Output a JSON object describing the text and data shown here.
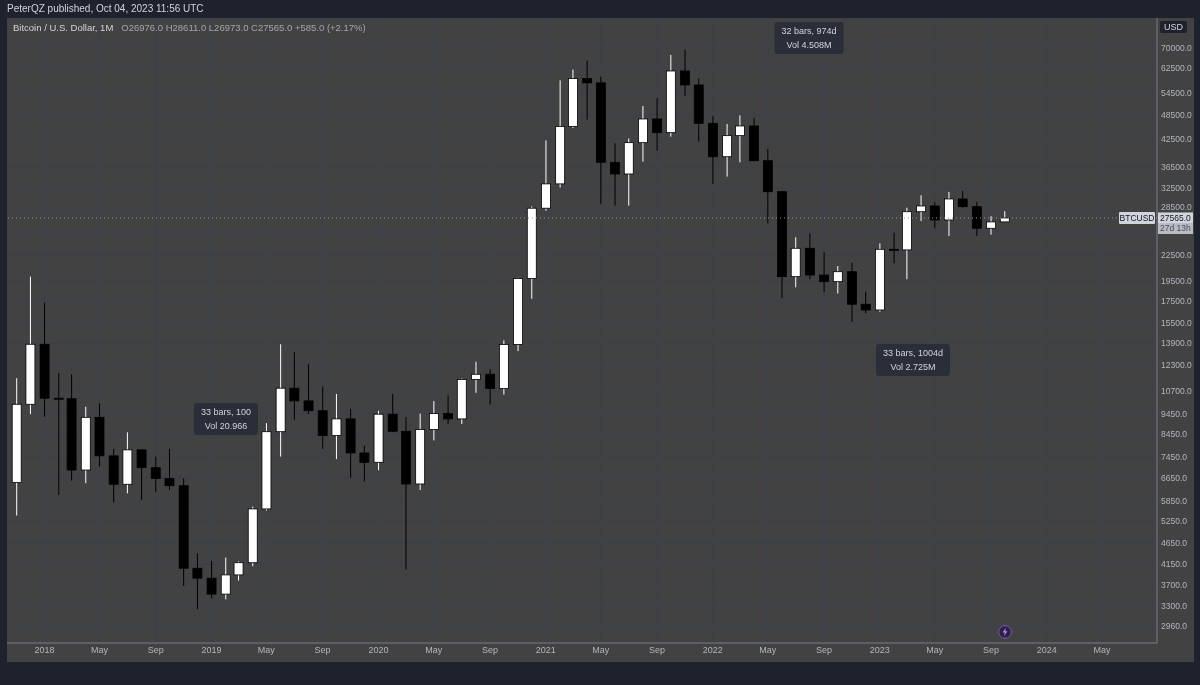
{
  "chart_data": {
    "type": "candlestick",
    "title": "Bitcoin / U.S. Dollar, 1M",
    "subtitle": "O26976.0 H28611.0 L26973.0 C27565.0 +585.0 (+2.17%)",
    "ylabel": "USD",
    "x": [
      "2017-11",
      "2017-12",
      "2018-01",
      "2018-02",
      "2018-03",
      "2018-04",
      "2018-05",
      "2018-06",
      "2018-07",
      "2018-08",
      "2018-09",
      "2018-10",
      "2018-11",
      "2018-12",
      "2019-01",
      "2019-02",
      "2019-03",
      "2019-04",
      "2019-05",
      "2019-06",
      "2019-07",
      "2019-08",
      "2019-09",
      "2019-10",
      "2019-11",
      "2019-12",
      "2020-01",
      "2020-02",
      "2020-03",
      "2020-04",
      "2020-05",
      "2020-06",
      "2020-07",
      "2020-08",
      "2020-09",
      "2020-10",
      "2020-11",
      "2020-12",
      "2021-01",
      "2021-02",
      "2021-03",
      "2021-04",
      "2021-05",
      "2021-06",
      "2021-07",
      "2021-08",
      "2021-09",
      "2021-10",
      "2021-11",
      "2021-12",
      "2022-01",
      "2022-02",
      "2022-03",
      "2022-04",
      "2022-05",
      "2022-06",
      "2022-07",
      "2022-08",
      "2022-09",
      "2022-10",
      "2022-11",
      "2022-12",
      "2023-01",
      "2023-02",
      "2023-03",
      "2023-04",
      "2023-05",
      "2023-06",
      "2023-07",
      "2023-08",
      "2023-09",
      "2023-10"
    ],
    "ohlc": [
      [
        6480,
        11470,
        5410,
        9945
      ],
      [
        9945,
        20000,
        9420,
        13810
      ],
      [
        13810,
        17340,
        9290,
        10280
      ],
      [
        10280,
        11790,
        6060,
        10250
      ],
      [
        10250,
        11720,
        6550,
        6940
      ],
      [
        6940,
        9810,
        6460,
        9260
      ],
      [
        9260,
        10000,
        7070,
        7500
      ],
      [
        7500,
        7790,
        5810,
        6420
      ],
      [
        6420,
        8530,
        6110,
        7750
      ],
      [
        7750,
        7760,
        5890,
        7030
      ],
      [
        7030,
        7470,
        6150,
        6630
      ],
      [
        6630,
        7790,
        6220,
        6370
      ],
      [
        6370,
        6630,
        3680,
        4055
      ],
      [
        4055,
        4400,
        3240,
        3840
      ],
      [
        3840,
        4220,
        3440,
        3520
      ],
      [
        3520,
        4300,
        3420,
        3910
      ],
      [
        3910,
        4210,
        3790,
        4180
      ],
      [
        4180,
        5680,
        4100,
        5610
      ],
      [
        5610,
        8970,
        5560,
        8560
      ],
      [
        8560,
        13810,
        7470,
        10860
      ],
      [
        10860,
        13220,
        9130,
        10130
      ],
      [
        10130,
        12380,
        9430,
        9600
      ],
      [
        9600,
        10950,
        7790,
        8380
      ],
      [
        8380,
        10520,
        7370,
        9180
      ],
      [
        9180,
        9700,
        6660,
        7620
      ],
      [
        7620,
        7930,
        6520,
        7240
      ],
      [
        7240,
        9600,
        6930,
        9420
      ],
      [
        9420,
        10530,
        8540,
        8580
      ],
      [
        8580,
        9270,
        4030,
        6430
      ],
      [
        6430,
        9450,
        6220,
        8660
      ],
      [
        8660,
        10120,
        8160,
        9450
      ],
      [
        9450,
        10440,
        8920,
        9180
      ],
      [
        9180,
        11450,
        8930,
        11390
      ],
      [
        11390,
        12550,
        10590,
        11720
      ],
      [
        11720,
        12040,
        9930,
        10840
      ],
      [
        10840,
        14110,
        10490,
        13790
      ],
      [
        13790,
        19870,
        13300,
        19790
      ],
      [
        19790,
        29350,
        17710,
        29070
      ],
      [
        29070,
        42130,
        28680,
        33210
      ],
      [
        33210,
        58520,
        32560,
        45490
      ],
      [
        45490,
        62070,
        45100,
        59080
      ],
      [
        59080,
        65170,
        47210,
        57710
      ],
      [
        57710,
        59700,
        29750,
        37370
      ],
      [
        37370,
        41470,
        29480,
        35060
      ],
      [
        35060,
        42570,
        29480,
        41610
      ],
      [
        41610,
        50860,
        37500,
        47370
      ],
      [
        47370,
        53050,
        39820,
        43950
      ],
      [
        43950,
        67220,
        43000,
        61590
      ],
      [
        61590,
        69090,
        53720,
        57050
      ],
      [
        57050,
        59100,
        41830,
        46260
      ],
      [
        46260,
        48150,
        33190,
        38530
      ],
      [
        38530,
        46090,
        34550,
        43240
      ],
      [
        43240,
        48330,
        37370,
        45590
      ],
      [
        45590,
        47700,
        37600,
        37700
      ],
      [
        37700,
        40200,
        26770,
        31820
      ],
      [
        31820,
        31950,
        17760,
        19990
      ],
      [
        19990,
        24800,
        18860,
        23350
      ],
      [
        23350,
        25340,
        19710,
        20170
      ],
      [
        20170,
        22850,
        18350,
        19450
      ],
      [
        19450,
        21190,
        18230,
        20540
      ],
      [
        20540,
        21580,
        15630,
        17190
      ],
      [
        17190,
        18410,
        16360,
        16660
      ],
      [
        16660,
        23990,
        16500,
        23220
      ],
      [
        23220,
        25420,
        21510,
        23140
      ],
      [
        23140,
        29150,
        19710,
        28520
      ],
      [
        28520,
        31210,
        27110,
        29430
      ],
      [
        29430,
        30020,
        26050,
        27260
      ],
      [
        27260,
        31770,
        24970,
        30580
      ],
      [
        30580,
        32000,
        29140,
        29320
      ],
      [
        29320,
        30100,
        24970,
        26050
      ],
      [
        26050,
        27830,
        25150,
        26970
      ],
      [
        26976,
        28611,
        26973,
        27565
      ]
    ],
    "colors": [
      "#ffffff",
      "#ffffff",
      "#000000",
      "#000000",
      "#000000",
      "#ffffff",
      "#000000",
      "#000000",
      "#ffffff",
      "#000000",
      "#000000",
      "#000000",
      "#000000",
      "#000000",
      "#000000",
      "#ffffff",
      "#ffffff",
      "#ffffff",
      "#ffffff",
      "#ffffff",
      "#000000",
      "#000000",
      "#000000",
      "#ffffff",
      "#000000",
      "#000000",
      "#ffffff",
      "#000000",
      "#000000",
      "#ffffff",
      "#ffffff",
      "#000000",
      "#ffffff",
      "#ffffff",
      "#000000",
      "#ffffff",
      "#ffffff",
      "#ffffff",
      "#ffffff",
      "#ffffff",
      "#ffffff",
      "#000000",
      "#000000",
      "#000000",
      "#ffffff",
      "#ffffff",
      "#000000",
      "#ffffff",
      "#000000",
      "#000000",
      "#000000",
      "#ffffff",
      "#ffffff",
      "#000000",
      "#000000",
      "#000000",
      "#ffffff",
      "#000000",
      "#000000",
      "#ffffff",
      "#000000",
      "#000000",
      "#ffffff",
      "#000000",
      "#ffffff",
      "#ffffff",
      "#000000",
      "#ffffff",
      "#000000",
      "#000000",
      "#ffffff",
      "#ffffff"
    ],
    "xlim": [
      "2017-10-11",
      "2024-08-29"
    ],
    "xticks": [
      {
        "value": "2018-01",
        "label": "2018"
      },
      {
        "value": "2018-05",
        "label": "May"
      },
      {
        "value": "2018-09",
        "label": "Sep"
      },
      {
        "value": "2019-01",
        "label": "2019"
      },
      {
        "value": "2019-05",
        "label": "May"
      },
      {
        "value": "2019-09",
        "label": "Sep"
      },
      {
        "value": "2020-01",
        "label": "2020"
      },
      {
        "value": "2020-05",
        "label": "May"
      },
      {
        "value": "2020-09",
        "label": "Sep"
      },
      {
        "value": "2021-01",
        "label": "2021"
      },
      {
        "value": "2021-05",
        "label": "May"
      },
      {
        "value": "2021-09",
        "label": "Sep"
      },
      {
        "value": "2022-01",
        "label": "2022"
      },
      {
        "value": "2022-05",
        "label": "May"
      },
      {
        "value": "2022-09",
        "label": "Sep"
      },
      {
        "value": "2023-01",
        "label": "2023"
      },
      {
        "value": "2023-05",
        "label": "May"
      },
      {
        "value": "2023-09",
        "label": "Sep"
      },
      {
        "value": "2024-01",
        "label": "2024"
      },
      {
        "value": "2024-05",
        "label": "May"
      }
    ],
    "ylim": [
      2694,
      82300
    ],
    "yticks": [
      {
        "value": 2960,
        "label": "2960.0"
      },
      {
        "value": 3300,
        "label": "3300.0"
      },
      {
        "value": 3700,
        "label": "3700.0"
      },
      {
        "value": 4150,
        "label": "4150.0"
      },
      {
        "value": 4650,
        "label": "4650.0"
      },
      {
        "value": 5250,
        "label": "5250.0"
      },
      {
        "value": 5850,
        "label": "5850.0"
      },
      {
        "value": 6650,
        "label": "6650.0"
      },
      {
        "value": 7450,
        "label": "7450.0"
      },
      {
        "value": 8450,
        "label": "8450.0"
      },
      {
        "value": 9450,
        "label": "9450.0"
      },
      {
        "value": 10700,
        "label": "10700.0"
      },
      {
        "value": 12300,
        "label": "12300.0"
      },
      {
        "value": 13900,
        "label": "13900.0"
      },
      {
        "value": 15500,
        "label": "15500.0"
      },
      {
        "value": 17500,
        "label": "17500.0"
      },
      {
        "value": 19500,
        "label": "19500.0"
      },
      {
        "value": 22500,
        "label": "22500.0"
      },
      {
        "value": 25500,
        "label": null
      },
      {
        "value": 28500,
        "label": "28500.0"
      },
      {
        "value": 32500,
        "label": "32500.0"
      },
      {
        "value": 36500,
        "label": "36500.0"
      },
      {
        "value": 42500,
        "label": "42500.0"
      },
      {
        "value": 48500,
        "label": "48500.0"
      },
      {
        "value": 54500,
        "label": "54500.0"
      },
      {
        "value": 62500,
        "label": "62500.0"
      },
      {
        "value": 70000,
        "label": "70000.0"
      }
    ],
    "log": true,
    "grid": true,
    "ref_lines": [
      {
        "axis": "y",
        "value": 27565,
        "label": "BTCUSD",
        "color": "#9598a1",
        "line_style": "dotted"
      }
    ],
    "annotations": [
      "PeterQZ published, Oct 04, 2023 11:56 UTC",
      "32 bars, 974d\nVol 4.508M",
      "33 bars, 1004d\nVol 2.725M",
      "33 bars, 100\nVol 20.966",
      {
        "text": "27565.0",
        "y": 27565
      },
      "27d 13h"
    ]
  }
}
